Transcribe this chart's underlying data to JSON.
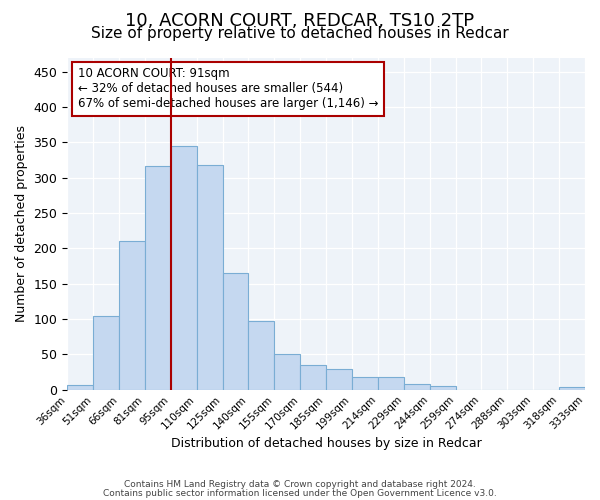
{
  "title": "10, ACORN COURT, REDCAR, TS10 2TP",
  "subtitle": "Size of property relative to detached houses in Redcar",
  "xlabel": "Distribution of detached houses by size in Redcar",
  "ylabel": "Number of detached properties",
  "bin_labels": [
    "36sqm",
    "51sqm",
    "66sqm",
    "81sqm",
    "95sqm",
    "110sqm",
    "125sqm",
    "140sqm",
    "155sqm",
    "170sqm",
    "185sqm",
    "199sqm",
    "214sqm",
    "229sqm",
    "244sqm",
    "259sqm",
    "274sqm",
    "288sqm",
    "303sqm",
    "318sqm",
    "333sqm"
  ],
  "bar_heights": [
    7,
    105,
    210,
    317,
    345,
    318,
    165,
    97,
    50,
    35,
    30,
    18,
    18,
    8,
    5,
    0,
    0,
    0,
    0,
    4
  ],
  "bar_color": "#c5d8f0",
  "bar_edgecolor": "#7aadd4",
  "vline_pos": 3.5,
  "vline_color": "#aa0000",
  "annotation_text": "10 ACORN COURT: 91sqm\n← 32% of detached houses are smaller (544)\n67% of semi-detached houses are larger (1,146) →",
  "annotation_box_color": "#ffffff",
  "annotation_box_edgecolor": "#aa0000",
  "yticks": [
    0,
    50,
    100,
    150,
    200,
    250,
    300,
    350,
    400,
    450
  ],
  "ylim": [
    0,
    470
  ],
  "footnote1": "Contains HM Land Registry data © Crown copyright and database right 2024.",
  "footnote2": "Contains public sector information licensed under the Open Government Licence v3.0.",
  "background_color": "#eef3f9",
  "title_fontsize": 13,
  "subtitle_fontsize": 11
}
